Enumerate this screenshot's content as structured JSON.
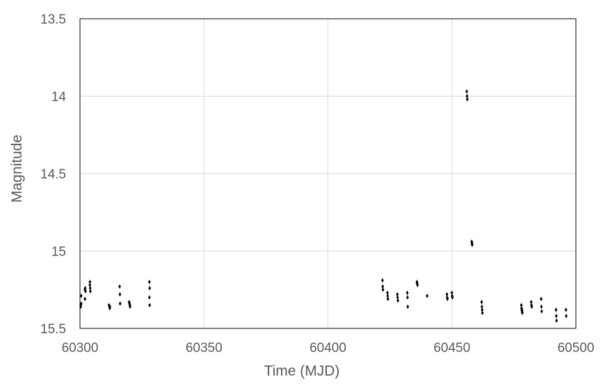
{
  "chart_data": {
    "type": "scatter",
    "title": "",
    "xlabel": "Time (MJD)",
    "ylabel": "Magnitude",
    "xlim": [
      60300,
      60500
    ],
    "ylim": [
      13.5,
      15.5
    ],
    "y_inverted": true,
    "grid": true,
    "legend": "none",
    "x_ticks": [
      60300,
      60350,
      60400,
      60450,
      60500
    ],
    "x_tick_labels": [
      "60300",
      "60350",
      "60400",
      "60450",
      "60500"
    ],
    "y_ticks": [
      13.5,
      14.0,
      14.5,
      15.0,
      15.5
    ],
    "y_tick_labels": [
      "13.5",
      "14",
      "14.5",
      "15",
      "15.5"
    ],
    "marker_color": "#000000",
    "points": [
      {
        "x": 60300.3,
        "y": 15.36
      },
      {
        "x": 60300.3,
        "y": 15.35
      },
      {
        "x": 60300.5,
        "y": 15.29
      },
      {
        "x": 60300.5,
        "y": 15.34
      },
      {
        "x": 60302.0,
        "y": 15.25
      },
      {
        "x": 60302.1,
        "y": 15.24
      },
      {
        "x": 60302.0,
        "y": 15.31
      },
      {
        "x": 60302.2,
        "y": 15.26
      },
      {
        "x": 60304.0,
        "y": 15.2
      },
      {
        "x": 60304.0,
        "y": 15.22
      },
      {
        "x": 60304.1,
        "y": 15.24
      },
      {
        "x": 60304.2,
        "y": 15.26
      },
      {
        "x": 60311.7,
        "y": 15.35
      },
      {
        "x": 60311.9,
        "y": 15.36
      },
      {
        "x": 60312.0,
        "y": 15.37
      },
      {
        "x": 60312.1,
        "y": 15.36
      },
      {
        "x": 60316.0,
        "y": 15.23
      },
      {
        "x": 60316.1,
        "y": 15.28
      },
      {
        "x": 60316.2,
        "y": 15.34
      },
      {
        "x": 60319.8,
        "y": 15.33
      },
      {
        "x": 60320.0,
        "y": 15.34
      },
      {
        "x": 60320.1,
        "y": 15.35
      },
      {
        "x": 60320.2,
        "y": 15.36
      },
      {
        "x": 60328.0,
        "y": 15.2
      },
      {
        "x": 60328.1,
        "y": 15.24
      },
      {
        "x": 60328.0,
        "y": 15.3
      },
      {
        "x": 60328.1,
        "y": 15.35
      },
      {
        "x": 60422.0,
        "y": 15.19
      },
      {
        "x": 60422.1,
        "y": 15.23
      },
      {
        "x": 60422.2,
        "y": 15.25
      },
      {
        "x": 60424.0,
        "y": 15.27
      },
      {
        "x": 60424.1,
        "y": 15.29
      },
      {
        "x": 60424.2,
        "y": 15.31
      },
      {
        "x": 60428.0,
        "y": 15.28
      },
      {
        "x": 60428.1,
        "y": 15.3
      },
      {
        "x": 60428.2,
        "y": 15.32
      },
      {
        "x": 60432.0,
        "y": 15.27
      },
      {
        "x": 60432.1,
        "y": 15.3
      },
      {
        "x": 60432.2,
        "y": 15.36
      },
      {
        "x": 60435.9,
        "y": 15.2
      },
      {
        "x": 60436.0,
        "y": 15.21
      },
      {
        "x": 60436.1,
        "y": 15.22
      },
      {
        "x": 60440.0,
        "y": 15.29
      },
      {
        "x": 60448.0,
        "y": 15.28
      },
      {
        "x": 60448.1,
        "y": 15.3
      },
      {
        "x": 60448.2,
        "y": 15.31
      },
      {
        "x": 60450.0,
        "y": 15.27
      },
      {
        "x": 60450.1,
        "y": 15.29
      },
      {
        "x": 60450.2,
        "y": 15.3
      },
      {
        "x": 60456.0,
        "y": 13.97
      },
      {
        "x": 60456.1,
        "y": 14.0
      },
      {
        "x": 60456.2,
        "y": 14.02
      },
      {
        "x": 60458.0,
        "y": 14.94
      },
      {
        "x": 60458.1,
        "y": 14.95
      },
      {
        "x": 60458.2,
        "y": 14.96
      },
      {
        "x": 60462.0,
        "y": 15.33
      },
      {
        "x": 60462.1,
        "y": 15.36
      },
      {
        "x": 60462.2,
        "y": 15.38
      },
      {
        "x": 60462.3,
        "y": 15.4
      },
      {
        "x": 60478.0,
        "y": 15.35
      },
      {
        "x": 60478.1,
        "y": 15.37
      },
      {
        "x": 60478.2,
        "y": 15.38
      },
      {
        "x": 60478.3,
        "y": 15.39
      },
      {
        "x": 60478.4,
        "y": 15.4
      },
      {
        "x": 60482.0,
        "y": 15.33
      },
      {
        "x": 60482.1,
        "y": 15.35
      },
      {
        "x": 60482.2,
        "y": 15.36
      },
      {
        "x": 60486.0,
        "y": 15.31
      },
      {
        "x": 60486.1,
        "y": 15.36
      },
      {
        "x": 60486.2,
        "y": 15.39
      },
      {
        "x": 60492.0,
        "y": 15.38
      },
      {
        "x": 60492.1,
        "y": 15.42
      },
      {
        "x": 60492.2,
        "y": 15.45
      },
      {
        "x": 60496.0,
        "y": 15.38
      },
      {
        "x": 60496.1,
        "y": 15.42
      }
    ]
  }
}
